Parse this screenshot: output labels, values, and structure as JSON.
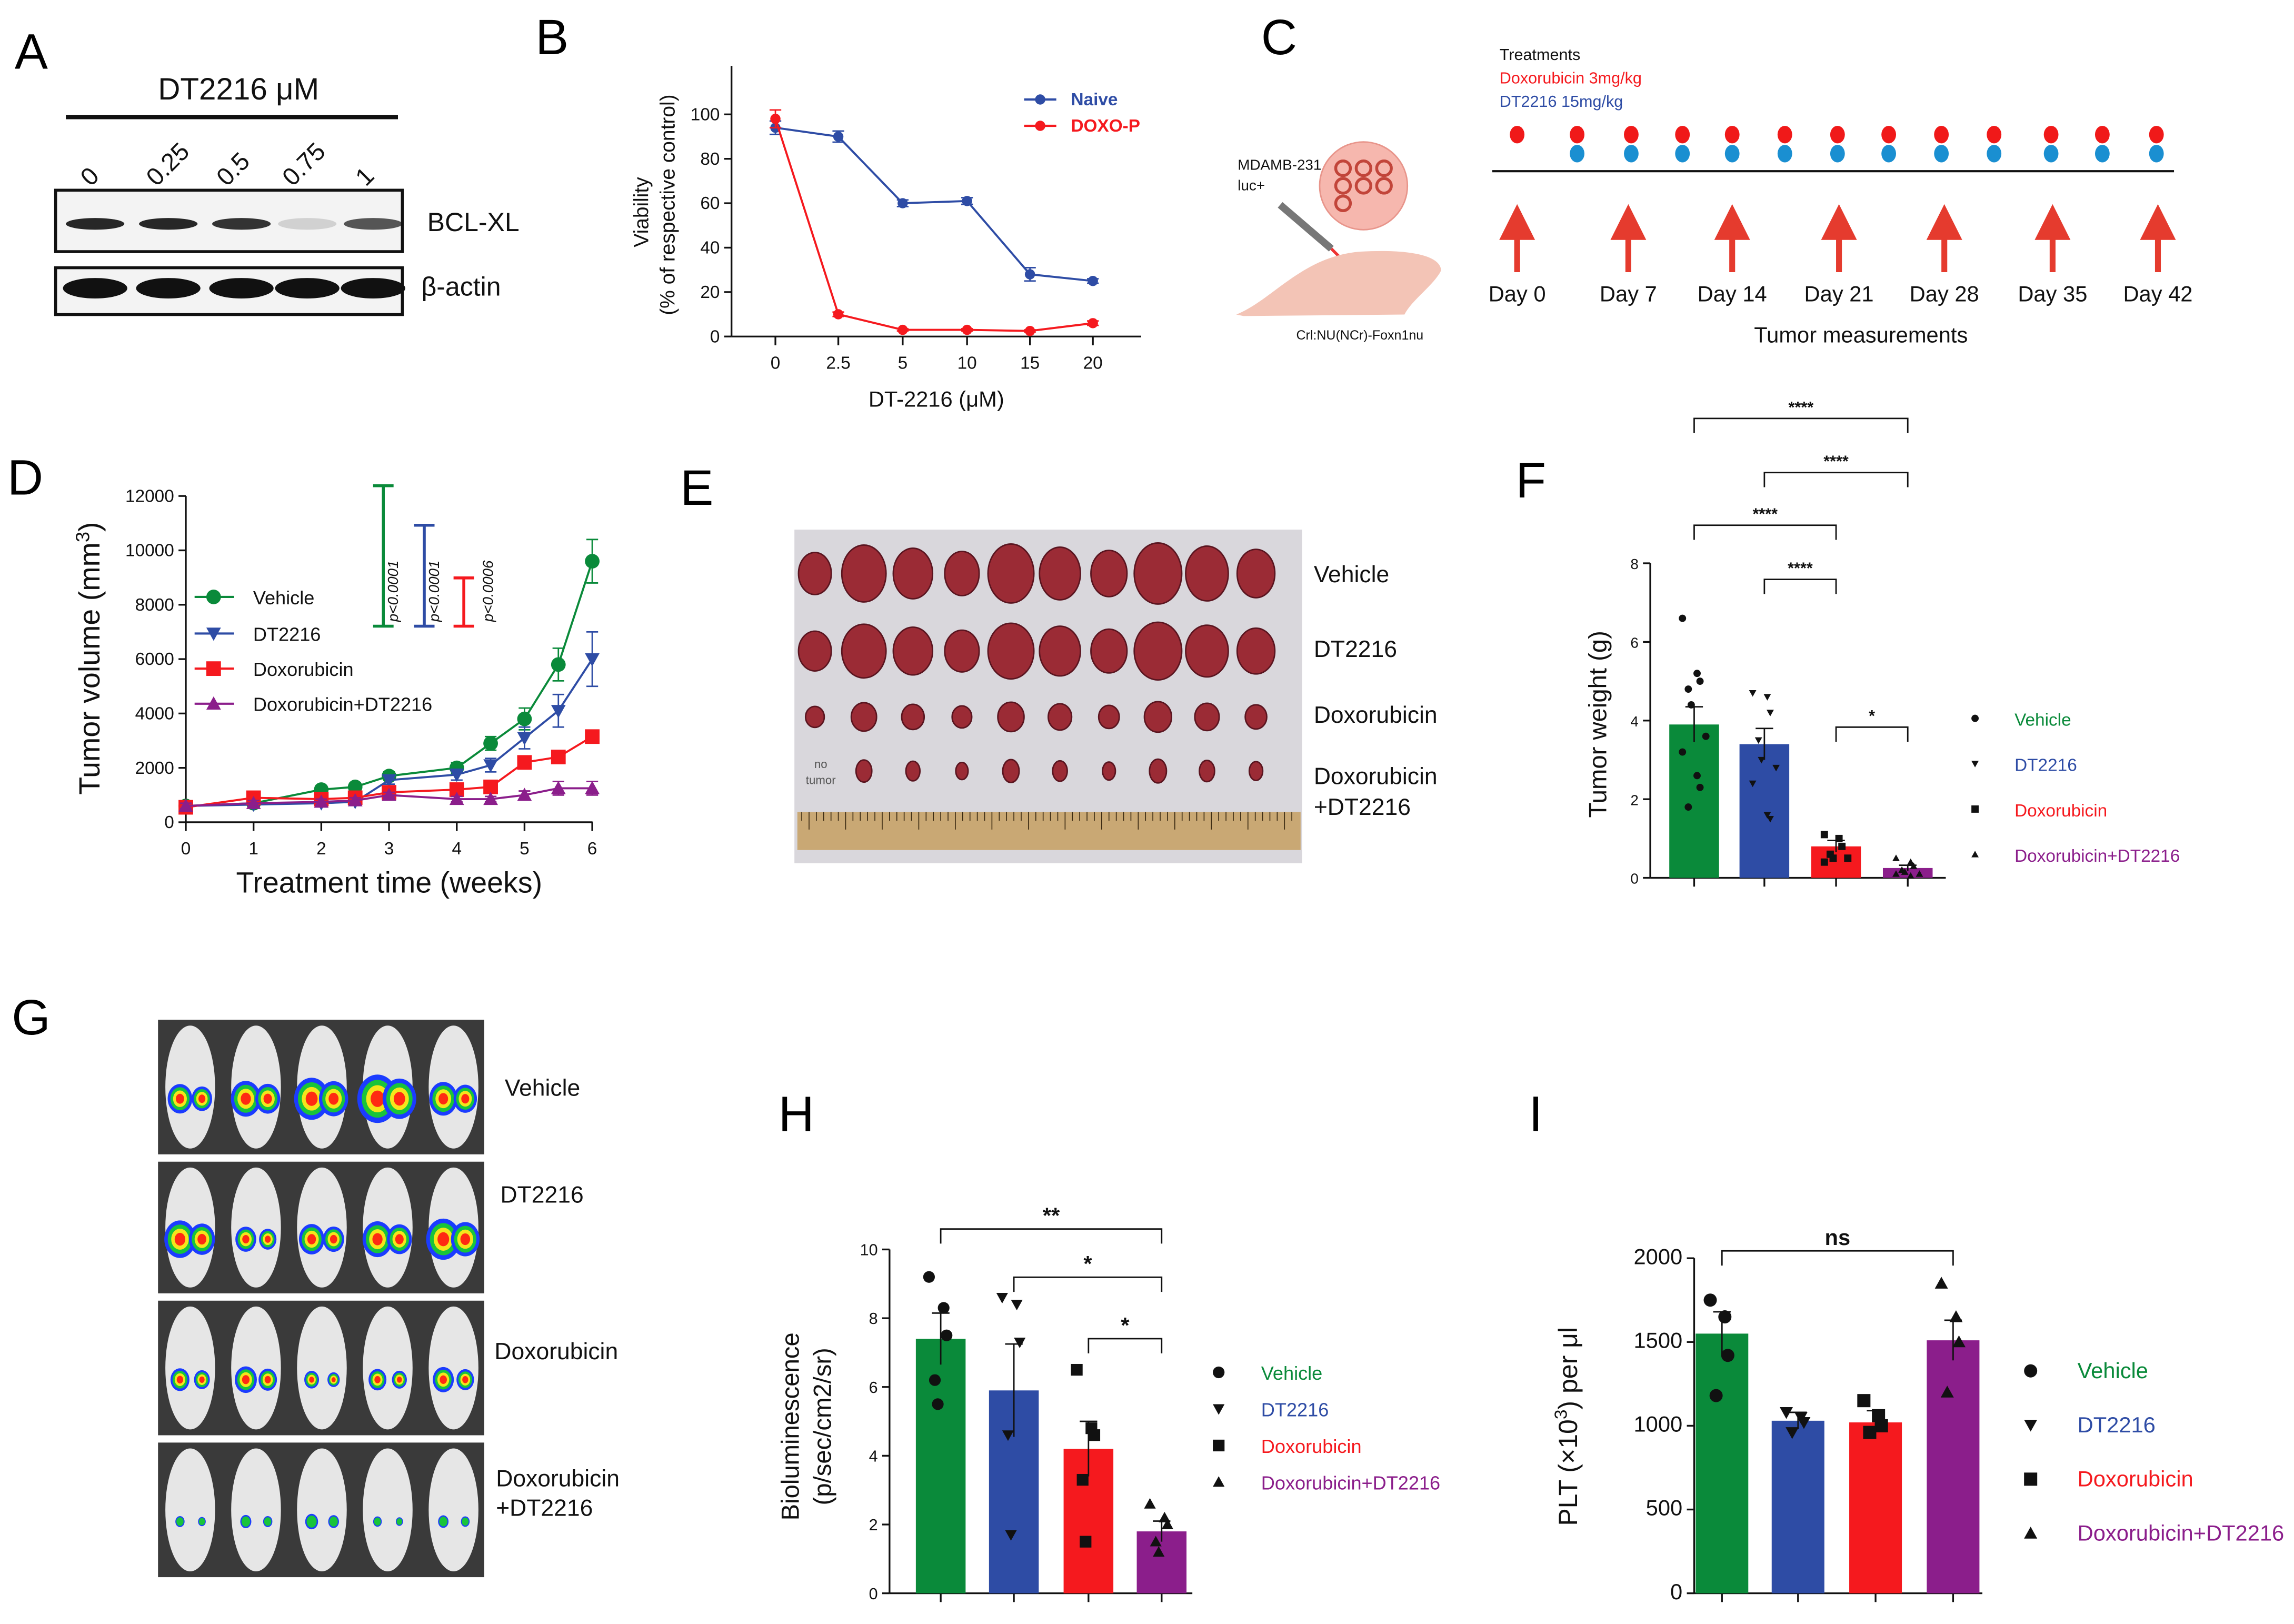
{
  "panels": {
    "A": "A",
    "B": "B",
    "C": "C",
    "D": "D",
    "E": "E",
    "F": "F",
    "G": "G",
    "H": "H",
    "I": "I"
  },
  "colors": {
    "vehicle": "#0a8a3a",
    "dt2216": "#2e4ca5",
    "doxorubicin": "#f5191e",
    "combo": "#8b1e8b",
    "naive": "#2e4ca5",
    "doxo_p": "#f5191e"
  },
  "panel_a": {
    "title": "DT2216  μM",
    "lanes": [
      "0",
      "0.25",
      "0.5",
      "0.75",
      "1"
    ],
    "blots": [
      "BCL-XL",
      "β-actin"
    ],
    "bcl_xl_intensity": [
      0.9,
      0.9,
      0.85,
      0.15,
      0.7
    ]
  },
  "panel_c": {
    "cell_line": "MDAMB-231",
    "cell_line2": "luc+",
    "strain": "Crl:NU(NCr)-Foxn1nu",
    "treatments_title": "Treatments",
    "doxo_label": "Doxorubicin 3mg/kg",
    "dt_label": "DT2216 15mg/kg",
    "days": [
      "Day 0",
      "Day 7",
      "Day 14",
      "Day 21",
      "Day 28",
      "Day 35",
      "Day 42"
    ],
    "measurements_label": "Tumor measurements"
  },
  "panel_e": {
    "groups": [
      "Vehicle",
      "DT2216",
      "Doxorubicin",
      "Doxorubicin",
      "+DT2216"
    ],
    "no_tumor": "no",
    "no_tumor2": "tumor"
  },
  "panel_g": {
    "groups": [
      "Vehicle",
      "DT2216",
      "Doxorubicin",
      "Doxorubicin",
      "+DT2216"
    ]
  },
  "chart_data": [
    {
      "id": "B",
      "type": "line",
      "xlabel": "DT-2216 (μM)",
      "ylabel": "Viability",
      "ylabel2": "(% of respective control)",
      "categories": [
        "0",
        "2.5",
        "5",
        "10",
        "15",
        "20"
      ],
      "ylim": [
        0,
        110
      ],
      "yticks": [
        0,
        20,
        40,
        60,
        80,
        100
      ],
      "legend": "top-right",
      "series": [
        {
          "name": "Naive",
          "values": [
            94,
            90,
            60,
            61,
            28,
            25
          ],
          "err": [
            3,
            2.5,
            1.5,
            1.5,
            3,
            1
          ]
        },
        {
          "name": "DOXO-P",
          "values": [
            98,
            10,
            3,
            3,
            2.5,
            6
          ],
          "err": [
            4,
            1,
            0.5,
            0.5,
            0.5,
            1
          ]
        }
      ]
    },
    {
      "id": "D",
      "type": "line",
      "xlabel": "Treatment time (weeks)",
      "ylabel": "Tumor volume (mm",
      "ylabel_sup": "3",
      "ylabel_end": ")",
      "x": [
        0,
        1,
        2,
        2.5,
        3,
        4,
        4.5,
        5,
        5.5,
        6
      ],
      "xticks": [
        0,
        1,
        2,
        3,
        4,
        5,
        6
      ],
      "ylim": [
        0,
        12000
      ],
      "yticks": [
        0,
        2000,
        4000,
        6000,
        8000,
        10000,
        12000
      ],
      "legend": "center-left",
      "series": [
        {
          "name": "Vehicle",
          "values": [
            600,
            700,
            1200,
            1300,
            1700,
            2000,
            2900,
            3800,
            5800,
            9600
          ],
          "err": [
            150,
            100,
            150,
            150,
            150,
            200,
            250,
            400,
            600,
            800
          ]
        },
        {
          "name": "DT2216",
          "values": [
            600,
            650,
            700,
            750,
            1550,
            1750,
            2100,
            3100,
            4100,
            6000
          ],
          "err": [
            150,
            100,
            100,
            100,
            150,
            200,
            250,
            400,
            600,
            1000
          ]
        },
        {
          "name": "Doxorubicin",
          "values": [
            550,
            900,
            850,
            900,
            1100,
            1200,
            1300,
            2200,
            2400,
            3150
          ],
          "err": [
            100,
            100,
            100,
            100,
            100,
            100,
            100,
            150,
            150,
            200
          ]
        },
        {
          "name": "Doxorubicin+DT2216",
          "values": [
            600,
            700,
            750,
            800,
            1000,
            850,
            850,
            1000,
            1250,
            1250
          ],
          "err": [
            100,
            100,
            100,
            100,
            100,
            100,
            100,
            150,
            250,
            250
          ]
        }
      ],
      "annotations": [
        "p<0.0001",
        "p<0.0001",
        "p<0.0006"
      ]
    },
    {
      "id": "F",
      "type": "bar",
      "ylabel": "Tumor weight (g)",
      "categories": [
        "Vehicle",
        "DT2216",
        "Doxorubicin",
        "Doxorubicin+DT2216"
      ],
      "values": [
        3.9,
        3.4,
        0.8,
        0.25
      ],
      "sem": [
        0.45,
        0.4,
        0.15,
        0.07
      ],
      "points": [
        [
          6.6,
          5.2,
          5.0,
          4.8,
          4.4,
          3.6,
          3.2,
          2.6,
          2.3,
          1.8
        ],
        [
          4.7,
          4.6,
          4.2,
          3.5,
          3.0,
          2.8,
          2.4,
          1.6,
          1.5
        ],
        [
          1.1,
          1.0,
          0.8,
          0.6,
          0.5,
          0.5,
          0.4
        ],
        [
          0.5,
          0.4,
          0.3,
          0.2,
          0.15,
          0.1,
          0.1,
          0.05
        ]
      ],
      "ylim": [
        0,
        8
      ],
      "yticks": [
        0,
        2,
        4,
        6,
        8
      ],
      "legend": "right",
      "significance": [
        {
          "pair": [
            0,
            3
          ],
          "label": "****"
        },
        {
          "pair": [
            1,
            3
          ],
          "label": "****"
        },
        {
          "pair": [
            0,
            2
          ],
          "label": "****"
        },
        {
          "pair": [
            1,
            2
          ],
          "label": "****"
        },
        {
          "pair": [
            2,
            3
          ],
          "label": "*"
        }
      ]
    },
    {
      "id": "H",
      "type": "bar",
      "ylabel": "Bioluminescence",
      "ylabel2": "(p/sec/cm2/sr)",
      "categories": [
        "Vehicle",
        "DT2216",
        "Doxorubicin",
        "Doxorubicin+DT2216"
      ],
      "values": [
        7.4,
        5.9,
        4.2,
        1.8
      ],
      "sem": [
        0.75,
        1.35,
        0.8,
        0.3
      ],
      "points": [
        [
          9.2,
          8.3,
          7.5,
          6.2,
          5.5
        ],
        [
          8.6,
          8.4,
          7.3,
          4.6,
          1.7
        ],
        [
          6.5,
          4.8,
          4.6,
          3.3,
          1.5
        ],
        [
          2.6,
          2.2,
          2.0,
          1.5,
          1.2
        ]
      ],
      "ylim": [
        0,
        10
      ],
      "yticks": [
        0,
        2,
        4,
        6,
        8,
        10
      ],
      "legend": "right",
      "significance": [
        {
          "pair": [
            0,
            3
          ],
          "label": "**"
        },
        {
          "pair": [
            1,
            3
          ],
          "label": "*"
        },
        {
          "pair": [
            2,
            3
          ],
          "label": "*"
        }
      ]
    },
    {
      "id": "I",
      "type": "bar",
      "ylabel": "PLT (×10",
      "ylabel_sup": "3",
      "ylabel_end": ") per μl",
      "categories": [
        "Vehicle",
        "DT2216",
        "Doxorubicin",
        "Doxorubicin+DT2216"
      ],
      "values": [
        1550,
        1030,
        1020,
        1510
      ],
      "sem": [
        130,
        50,
        70,
        120
      ],
      "points": [
        [
          1750,
          1650,
          1420,
          1180
        ],
        [
          1080,
          1050,
          1020,
          960
        ],
        [
          1150,
          1060,
          1000,
          960
        ],
        [
          1850,
          1650,
          1500,
          1200
        ]
      ],
      "ylim": [
        0,
        2000
      ],
      "yticks": [
        0,
        500,
        1000,
        1500,
        2000
      ],
      "legend": "right",
      "significance": [
        {
          "pair": [
            0,
            3
          ],
          "label": "ns"
        }
      ]
    }
  ]
}
